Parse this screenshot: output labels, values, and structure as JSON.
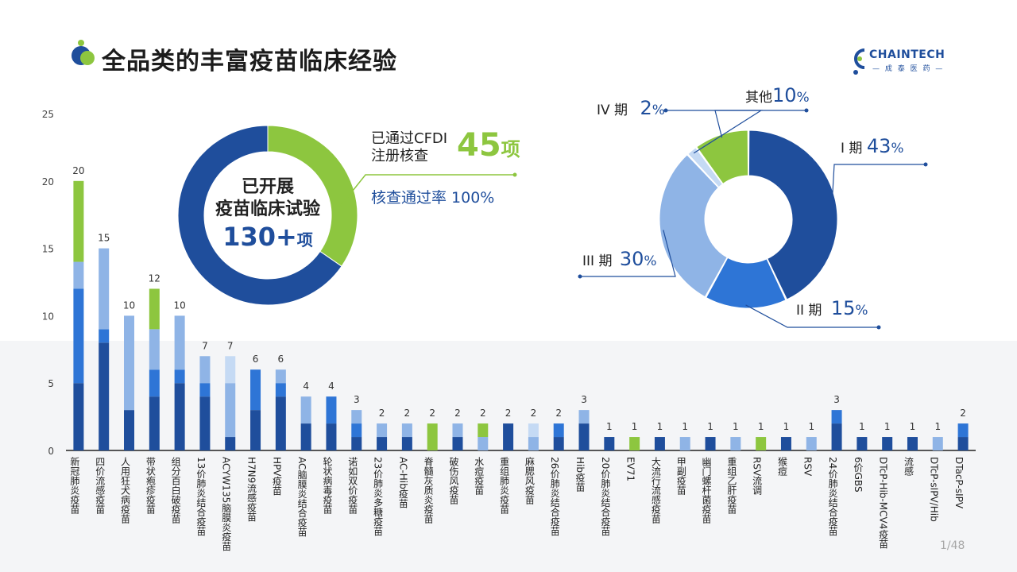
{
  "header": {
    "title": "全品类的丰富疫苗临床经验",
    "logo_text": "CHAINTECH",
    "logo_sub": "— 成 泰 医 药 —"
  },
  "page_number": "1/48",
  "highlights": {
    "center_line1": "已开展",
    "center_line2": "疫苗临床试验",
    "center_number": "130+",
    "center_unit": "项",
    "cfdi_label_line1": "已通过CFDI",
    "cfdi_label_line2": "注册核查",
    "cfdi_number": "45",
    "cfdi_unit": "项",
    "pass_rate": "核查通过率 100%"
  },
  "colors": {
    "dark_blue": "#1f4e9c",
    "blue": "#2e75d6",
    "light_blue": "#8fb4e6",
    "pale_blue": "#c5daf4",
    "green": "#8dc63f"
  },
  "chart_data": [
    {
      "type": "bar",
      "stacked": true,
      "categories": [
        "新冠肺炎疫苗",
        "四价流感疫苗",
        "人用狂犬病疫苗",
        "带状疱疹疫苗",
        "组分百白破疫苗",
        "13价肺炎结合疫苗",
        "ACYW135脑膜炎疫苗",
        "H7N9流感疫苗",
        "HPV疫苗",
        "AC脑膜炎结合疫苗",
        "轮状病毒疫苗",
        "诺如双价疫苗",
        "23价肺炎多糖疫苗",
        "AC-Hib疫苗",
        "脊髓灰质炎疫苗",
        "破伤风疫苗",
        "水痘疫苗",
        "重组肺炎疫苗",
        "麻腮风疫苗",
        "26价肺炎结合疫苗",
        "Hib疫苗",
        "20价肺炎结合疫苗",
        "EV71",
        "大流行流感疫苗",
        "甲副疫苗",
        "幽门螺杆菌疫苗",
        "重组乙肝疫苗",
        "RSV流调",
        "猴痘",
        "RSV",
        "24价肺炎结合疫苗",
        "6价GBS",
        "DTcP-Hib-MCV4疫苗",
        "流感",
        "DTcP-sIPV/Hib",
        "DTacP-sIPV"
      ],
      "totals": [
        20,
        15,
        10,
        12,
        10,
        7,
        7,
        6,
        6,
        4,
        4,
        3,
        2,
        2,
        2,
        2,
        2,
        2,
        2,
        2,
        3,
        1,
        1,
        1,
        1,
        1,
        1,
        1,
        1,
        1,
        3,
        1,
        1,
        1,
        1,
        2
      ],
      "series": [
        {
          "values": [
            5,
            8,
            3,
            4,
            5,
            4,
            1,
            3,
            4,
            2,
            2,
            1,
            1,
            1,
            0,
            1,
            0,
            2,
            0,
            1,
            2,
            1,
            0,
            1,
            0,
            1,
            0,
            0,
            1,
            0,
            2,
            1,
            1,
            1,
            0,
            1
          ]
        },
        {
          "values": [
            7,
            1,
            0,
            2,
            1,
            1,
            0,
            3,
            1,
            0,
            2,
            1,
            0,
            0,
            0,
            0,
            0,
            0,
            0,
            1,
            0,
            0,
            0,
            0,
            0,
            0,
            0,
            0,
            0,
            0,
            1,
            0,
            0,
            0,
            0,
            1
          ]
        },
        {
          "values": [
            2,
            6,
            7,
            3,
            4,
            2,
            4,
            0,
            1,
            2,
            0,
            1,
            1,
            1,
            0,
            1,
            1,
            0,
            1,
            0,
            1,
            0,
            0,
            0,
            1,
            0,
            1,
            0,
            0,
            1,
            0,
            0,
            0,
            0,
            1,
            0
          ]
        },
        {
          "values": [
            0,
            0,
            0,
            0,
            0,
            0,
            2,
            0,
            0,
            0,
            0,
            0,
            0,
            0,
            0,
            0,
            0,
            0,
            1,
            0,
            0,
            0,
            0,
            0,
            0,
            0,
            0,
            0,
            0,
            0,
            0,
            0,
            0,
            0,
            0,
            0
          ]
        },
        {
          "values": [
            6,
            0,
            0,
            3,
            0,
            0,
            0,
            0,
            0,
            0,
            0,
            0,
            0,
            0,
            2,
            0,
            1,
            0,
            0,
            0,
            0,
            0,
            1,
            0,
            0,
            0,
            0,
            1,
            0,
            0,
            0,
            0,
            0,
            0,
            0,
            0
          ]
        }
      ],
      "y_ticks": [
        "0",
        "5",
        "10",
        "15",
        "20",
        "25"
      ],
      "ylim": [
        0,
        25
      ]
    },
    {
      "type": "pie",
      "donut": true,
      "slices": [
        {
          "label": "I 期",
          "pct": "43",
          "value": 43,
          "color": "#1f4e9c"
        },
        {
          "label": "II 期",
          "pct": "15",
          "value": 15,
          "color": "#2e75d6"
        },
        {
          "label": "III 期",
          "pct": "30",
          "value": 30,
          "color": "#8fb4e6"
        },
        {
          "label": "IV 期",
          "pct": "2",
          "value": 2,
          "color": "#c5daf4"
        },
        {
          "label": "其他",
          "pct": "10",
          "value": 10,
          "color": "#8dc63f"
        }
      ],
      "percent_sign": "%"
    },
    {
      "type": "pie",
      "donut": true,
      "slices": [
        {
          "value": 45,
          "color": "#8dc63f"
        },
        {
          "value": 85,
          "color": "#1f4e9c"
        }
      ]
    }
  ]
}
